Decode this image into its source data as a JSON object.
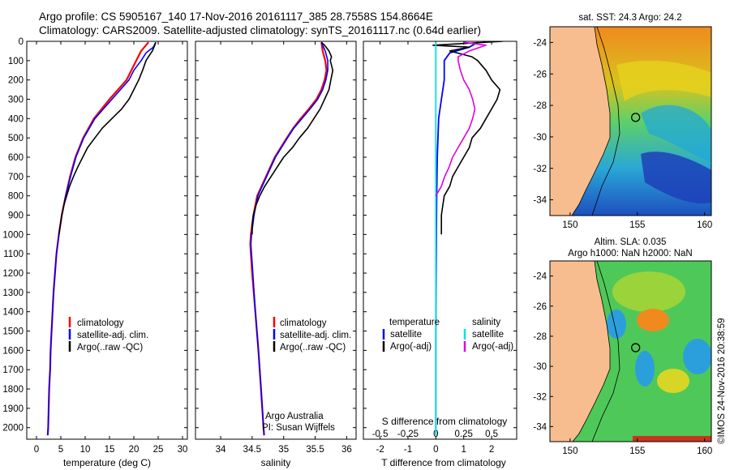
{
  "header": {
    "line1": "Argo profile: CS 5905167_140 17-Nov-2016 20161117_385 28.7558S 154.8664E",
    "line2": "Climatology: CARS2009. Satellite-adjusted climatology: synTS_20161117.nc (0.64d earlier)"
  },
  "colors": {
    "climatology": "#ff0000",
    "satellite": "#0000ff",
    "argo": "#000000",
    "salinity_satellite": "#00e5e5",
    "salinity_argo": "#e000e0",
    "land": "#f7bd8f"
  },
  "chart_data": [
    {
      "type": "line",
      "name": "temperature",
      "xlabel": "temperature (deg C)",
      "xlim": [
        -2,
        31
      ],
      "xticks": [
        "0",
        "5",
        "10",
        "15",
        "20",
        "25",
        "30"
      ],
      "ylim": [
        0,
        2060
      ],
      "yticks": [
        "0",
        "100",
        "200",
        "300",
        "400",
        "500",
        "600",
        "700",
        "800",
        "900",
        "1000",
        "1100",
        "1200",
        "1300",
        "1400",
        "1500",
        "1600",
        "1700",
        "1800",
        "1900",
        "2000"
      ],
      "legend": [
        "climatology",
        "satellite-adj. clim.",
        "Argo(..raw -QC)"
      ],
      "series": [
        {
          "name": "climatology",
          "depth": [
            5,
            50,
            100,
            150,
            200,
            300,
            400,
            500,
            600,
            700,
            800,
            900,
            1000,
            1100,
            1200,
            1300,
            1400,
            1500,
            1600,
            1700,
            1800,
            1900,
            2000,
            2040
          ],
          "values": [
            23.0,
            21.5,
            20.5,
            19.5,
            18.5,
            15.0,
            11.8,
            9.6,
            8.0,
            6.9,
            6.0,
            5.2,
            4.6,
            4.1,
            3.8,
            3.5,
            3.3,
            3.1,
            2.9,
            2.8,
            2.6,
            2.5,
            2.4,
            2.3
          ]
        },
        {
          "name": "satellite-adj. clim.",
          "depth": [
            5,
            30,
            60,
            100,
            150,
            200,
            300,
            400,
            500,
            600,
            700,
            800,
            900,
            1000,
            1100,
            1200,
            1300,
            1400,
            1500,
            1600,
            1700,
            1800,
            1900,
            2000,
            2040
          ],
          "values": [
            24.5,
            24.0,
            22.5,
            21.5,
            20.0,
            19.0,
            15.5,
            12.0,
            9.7,
            8.1,
            7.0,
            6.0,
            5.2,
            4.6,
            4.1,
            3.8,
            3.5,
            3.3,
            3.1,
            2.9,
            2.8,
            2.6,
            2.5,
            2.4,
            2.3
          ]
        },
        {
          "name": "Argo(..raw -QC)",
          "depth": [
            5,
            20,
            50,
            80,
            100,
            150,
            200,
            250,
            300,
            350,
            400,
            450,
            500,
            550,
            600,
            650,
            700,
            750,
            800,
            850,
            900,
            950,
            1000
          ],
          "values": [
            24.5,
            24.3,
            23.8,
            23.0,
            22.5,
            21.8,
            21.0,
            20.0,
            19.0,
            17.5,
            15.5,
            13.5,
            12.0,
            10.5,
            9.5,
            8.5,
            7.6,
            6.8,
            6.2,
            5.6,
            5.2,
            4.9,
            4.6
          ]
        }
      ]
    },
    {
      "type": "line",
      "name": "salinity",
      "xlabel": "salinity",
      "xlim": [
        33.6,
        36.15
      ],
      "xticks": [
        "34",
        "34.5",
        "35",
        "35.5",
        "36"
      ],
      "ylim": [
        0,
        2060
      ],
      "legend": [
        "climatology",
        "satellite-adj. clim.",
        "Argo(..raw -QC)"
      ],
      "annotation": [
        "Argo Australia",
        "PI: Susan Wijffels"
      ],
      "series": [
        {
          "name": "climatology",
          "depth": [
            5,
            50,
            100,
            150,
            200,
            250,
            300,
            350,
            400,
            450,
            500,
            600,
            700,
            800,
            850,
            900,
            950,
            1000,
            1050,
            1100,
            1200,
            1400,
            1600,
            1800,
            2000,
            2040
          ],
          "values": [
            35.6,
            35.62,
            35.66,
            35.68,
            35.65,
            35.6,
            35.52,
            35.4,
            35.27,
            35.15,
            35.05,
            34.86,
            34.72,
            34.58,
            34.55,
            34.52,
            34.5,
            34.48,
            34.47,
            34.48,
            34.5,
            34.55,
            34.6,
            34.64,
            34.68,
            34.69
          ]
        },
        {
          "name": "satellite-adj. clim.",
          "depth": [
            5,
            50,
            100,
            150,
            200,
            250,
            300,
            350,
            400,
            450,
            500,
            600,
            700,
            800,
            850,
            900,
            950,
            1000,
            1050,
            1100,
            1200,
            1400,
            1600,
            1800,
            2000,
            2040
          ],
          "values": [
            35.6,
            35.66,
            35.7,
            35.7,
            35.67,
            35.62,
            35.54,
            35.42,
            35.29,
            35.16,
            35.06,
            34.87,
            34.73,
            34.59,
            34.56,
            34.53,
            34.51,
            34.49,
            34.48,
            34.49,
            34.51,
            34.55,
            34.6,
            34.64,
            34.68,
            34.69
          ]
        },
        {
          "name": "Argo(..raw -QC)",
          "depth": [
            5,
            20,
            50,
            80,
            100,
            150,
            200,
            250,
            300,
            350,
            400,
            450,
            500,
            550,
            600,
            650,
            700,
            750,
            800,
            850,
            900,
            950,
            1000
          ],
          "values": [
            35.6,
            35.65,
            35.72,
            35.76,
            35.74,
            35.78,
            35.75,
            35.72,
            35.65,
            35.58,
            35.48,
            35.38,
            35.25,
            35.14,
            35.0,
            34.9,
            34.8,
            34.7,
            34.62,
            34.56,
            34.52,
            34.5,
            34.5
          ]
        }
      ]
    },
    {
      "type": "line",
      "name": "difference",
      "xlabel": "T difference from climatology",
      "xlabel2": "S difference from climatology",
      "xlim": [
        -2.6,
        2.9
      ],
      "xticks": [
        "-2",
        "-1",
        "0",
        "1",
        "2"
      ],
      "xticks2": [
        "-0.5",
        "-0.25",
        "0",
        "0.25",
        "0.5"
      ],
      "ylim": [
        0,
        2060
      ],
      "legend_headers": [
        "temperature",
        "salinity"
      ],
      "legend": [
        "satellite",
        "Argo(-adj)",
        "satellite",
        "Argo(-adj)"
      ],
      "series": [
        {
          "name": "T satellite",
          "depth": [
            5,
            30,
            60,
            100,
            200,
            300,
            400,
            600,
            800,
            1000,
            1500,
            2000,
            2040
          ],
          "values": [
            1.5,
            1.2,
            0.5,
            0.3,
            0.3,
            0.2,
            0.1,
            0.05,
            0.03,
            0.02,
            0.0,
            0.0,
            0.0
          ]
        },
        {
          "name": "T Argo(-adj)",
          "depth": [
            0,
            20,
            30,
            50,
            80,
            100,
            150,
            200,
            250,
            300,
            350,
            400,
            450,
            500,
            550,
            600,
            650,
            700,
            750,
            800,
            850,
            900,
            950,
            1000
          ],
          "values": [
            2.4,
            -0.1,
            1.2,
            0.5,
            1.3,
            1.5,
            1.8,
            2.0,
            2.3,
            2.2,
            2.0,
            1.8,
            1.6,
            1.3,
            1.2,
            1.0,
            0.8,
            0.6,
            0.5,
            0.3,
            0.25,
            0.2,
            0.2,
            0.2
          ]
        },
        {
          "name": "S satellite",
          "depth": [
            5,
            50,
            100,
            200,
            400,
            700,
            1000,
            1500,
            2000,
            2040
          ],
          "values": [
            0.0,
            0.0,
            0.0,
            0.0,
            0.0,
            0.0,
            0.0,
            0.0,
            0.0,
            0.0
          ]
        },
        {
          "name": "S Argo(-adj)",
          "depth": [
            5,
            20,
            50,
            80,
            100,
            150,
            200,
            250,
            300,
            350,
            400,
            450,
            500,
            550,
            600,
            650,
            700,
            750,
            800
          ],
          "values": [
            0.25,
            0.45,
            0.3,
            0.2,
            0.2,
            0.22,
            0.25,
            0.3,
            0.33,
            0.35,
            0.33,
            0.3,
            0.25,
            0.2,
            0.15,
            0.12,
            0.08,
            0.05,
            0.0
          ]
        }
      ]
    },
    {
      "type": "heatmap",
      "name": "sst-map",
      "title": "sat. SST: 24.3 Argo: 24.2",
      "xticks": [
        "150",
        "155",
        "160"
      ],
      "yticks": [
        "-24",
        "-26",
        "-28",
        "-30",
        "-32",
        "-34"
      ],
      "xlim": [
        148.5,
        160.5
      ],
      "ylim": [
        -35,
        -23
      ],
      "argo_position": [
        154.87,
        -28.76
      ]
    },
    {
      "type": "heatmap",
      "name": "sla-map",
      "title": "Altim. SLA: 0.035",
      "title2": "Argo h1000: NaN h2000: NaN",
      "xticks": [
        "150",
        "155",
        "160"
      ],
      "yticks": [
        "-24",
        "-26",
        "-28",
        "-30",
        "-32",
        "-34"
      ],
      "xlim": [
        148.5,
        160.5
      ],
      "ylim": [
        -35,
        -23
      ],
      "argo_position": [
        154.87,
        -28.76
      ]
    }
  ],
  "credit": "©IMOS 24-Nov-2016 20:38:59"
}
